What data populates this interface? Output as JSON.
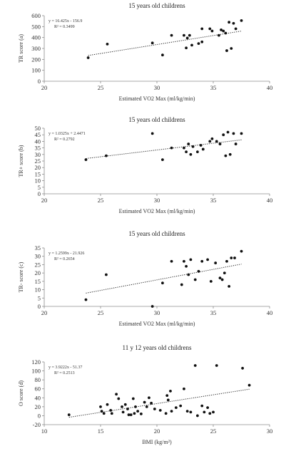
{
  "chart_data": [
    {
      "type": "scatter",
      "title": "15 years old childrens",
      "xlabel": "Estimated VO2 Max (ml/kg/min)",
      "ylabel": "TR score (a)",
      "xlim": [
        20,
        40
      ],
      "ylim": [
        0,
        600
      ],
      "xticks": [
        "20",
        "25",
        "30",
        "35",
        "40"
      ],
      "yticks": [
        "0",
        "100",
        "200",
        "300",
        "400",
        "500",
        "600"
      ],
      "equation": "y = 16.425x - 156.9",
      "r2": "R² = 0.3499",
      "trendline": {
        "slope": 16.425,
        "intercept": -156.9,
        "style": "dotted"
      },
      "points": [
        [
          23.9,
          215
        ],
        [
          25.6,
          340
        ],
        [
          29.6,
          350
        ],
        [
          30.5,
          240
        ],
        [
          31.3,
          420
        ],
        [
          32.4,
          420
        ],
        [
          32.6,
          305
        ],
        [
          32.7,
          395
        ],
        [
          32.9,
          420
        ],
        [
          33.1,
          330
        ],
        [
          33.7,
          345
        ],
        [
          34.0,
          360
        ],
        [
          34.0,
          480
        ],
        [
          34.7,
          480
        ],
        [
          34.9,
          460
        ],
        [
          35.5,
          420
        ],
        [
          35.7,
          470
        ],
        [
          35.9,
          460
        ],
        [
          36.1,
          440
        ],
        [
          36.2,
          280
        ],
        [
          36.4,
          540
        ],
        [
          36.6,
          300
        ],
        [
          36.8,
          530
        ],
        [
          37.0,
          480
        ],
        [
          37.5,
          555
        ]
      ]
    },
    {
      "type": "scatter",
      "title": "15 years old childrens",
      "xlabel": "Estimated VO2 Max (ml/kg/min)",
      "ylabel": "TR+ score (b)",
      "xlim": [
        20,
        40
      ],
      "ylim": [
        0,
        50
      ],
      "xticks": [
        "20",
        "25",
        "30",
        "35",
        "40"
      ],
      "yticks": [
        "0",
        "5",
        "10",
        "15",
        "20",
        "25",
        "30",
        "35",
        "40",
        "45",
        "50"
      ],
      "equation": "y = 1.0325x + 2.4471",
      "r2": "R² = 0.2792",
      "trendline": {
        "slope": 1.0325,
        "intercept": 2.4471,
        "style": "dotted"
      },
      "points": [
        [
          23.7,
          26
        ],
        [
          25.5,
          29
        ],
        [
          29.6,
          46
        ],
        [
          30.5,
          26
        ],
        [
          31.3,
          35
        ],
        [
          32.4,
          35
        ],
        [
          32.6,
          32
        ],
        [
          32.8,
          38
        ],
        [
          33.0,
          30
        ],
        [
          33.2,
          36
        ],
        [
          33.6,
          32
        ],
        [
          33.9,
          37
        ],
        [
          34.1,
          34
        ],
        [
          34.7,
          40
        ],
        [
          34.9,
          42
        ],
        [
          35.3,
          40
        ],
        [
          35.6,
          38
        ],
        [
          35.9,
          45
        ],
        [
          36.1,
          29
        ],
        [
          36.3,
          47
        ],
        [
          36.5,
          30
        ],
        [
          36.8,
          46
        ],
        [
          37.0,
          38
        ],
        [
          37.5,
          46
        ]
      ]
    },
    {
      "type": "scatter",
      "title": "15 years old childrens",
      "xlabel": "Estimated VO2 Max (ml/kg/min)",
      "ylabel": "TR- score (c)",
      "xlim": [
        20,
        40
      ],
      "ylim": [
        0,
        35
      ],
      "xticks": [
        "20",
        "25",
        "30",
        "35",
        "40"
      ],
      "yticks": [
        "0",
        "5",
        "10",
        "15",
        "20",
        "25",
        "30",
        "35"
      ],
      "equation": "y = 1.2599x - 21.926",
      "r2": "R² = 0.2654",
      "trendline": {
        "slope": 1.2599,
        "intercept": -21.926,
        "style": "dotted"
      },
      "points": [
        [
          23.7,
          4
        ],
        [
          25.5,
          19
        ],
        [
          29.6,
          0
        ],
        [
          30.5,
          14
        ],
        [
          31.3,
          27
        ],
        [
          32.2,
          13
        ],
        [
          32.4,
          27
        ],
        [
          32.6,
          24
        ],
        [
          32.8,
          19
        ],
        [
          33.0,
          28
        ],
        [
          33.4,
          16
        ],
        [
          33.7,
          21
        ],
        [
          34.0,
          27
        ],
        [
          34.5,
          28
        ],
        [
          34.8,
          15
        ],
        [
          35.2,
          26
        ],
        [
          35.6,
          17
        ],
        [
          35.8,
          16
        ],
        [
          36.0,
          20
        ],
        [
          36.2,
          27
        ],
        [
          36.4,
          12
        ],
        [
          36.6,
          29
        ],
        [
          36.9,
          29
        ],
        [
          37.5,
          33
        ]
      ]
    },
    {
      "type": "scatter",
      "title": "11 y 12 years old childrens",
      "xlabel": "BMI (kg/m²)",
      "ylabel": "O score (d)",
      "xlim": [
        10,
        30
      ],
      "ylim": [
        -20,
        120
      ],
      "xticks": [
        "10",
        "15",
        "20",
        "25",
        "30"
      ],
      "yticks": [
        "-20",
        "0",
        "20",
        "40",
        "60",
        "80",
        "100",
        "120"
      ],
      "equation": "y = 3.9222x - 51.37",
      "r2": "R² = 0.2513",
      "trendline": {
        "slope": 3.9222,
        "intercept": -51.37,
        "style": "dotted"
      },
      "points": [
        [
          12.2,
          2
        ],
        [
          15.0,
          20
        ],
        [
          15.1,
          10
        ],
        [
          15.3,
          5
        ],
        [
          15.6,
          25
        ],
        [
          15.9,
          12
        ],
        [
          16.0,
          5
        ],
        [
          16.4,
          48
        ],
        [
          16.6,
          38
        ],
        [
          16.9,
          20
        ],
        [
          17.0,
          8
        ],
        [
          17.2,
          25
        ],
        [
          17.4,
          15
        ],
        [
          17.5,
          2
        ],
        [
          17.7,
          2
        ],
        [
          17.9,
          38
        ],
        [
          18.0,
          5
        ],
        [
          18.1,
          20
        ],
        [
          18.3,
          10
        ],
        [
          18.6,
          4
        ],
        [
          18.9,
          30
        ],
        [
          19.1,
          20
        ],
        [
          19.3,
          40
        ],
        [
          19.5,
          28
        ],
        [
          19.8,
          15
        ],
        [
          20.3,
          12
        ],
        [
          20.8,
          5
        ],
        [
          20.9,
          45
        ],
        [
          21.0,
          35
        ],
        [
          21.2,
          55
        ],
        [
          21.3,
          10
        ],
        [
          21.7,
          18
        ],
        [
          22.1,
          22
        ],
        [
          22.4,
          60
        ],
        [
          22.7,
          10
        ],
        [
          23.0,
          8
        ],
        [
          23.4,
          112
        ],
        [
          23.6,
          0
        ],
        [
          24.0,
          22
        ],
        [
          24.2,
          8
        ],
        [
          24.5,
          18
        ],
        [
          24.7,
          5
        ],
        [
          25.0,
          8
        ],
        [
          25.3,
          112
        ],
        [
          27.6,
          106
        ],
        [
          28.2,
          68
        ]
      ]
    }
  ]
}
